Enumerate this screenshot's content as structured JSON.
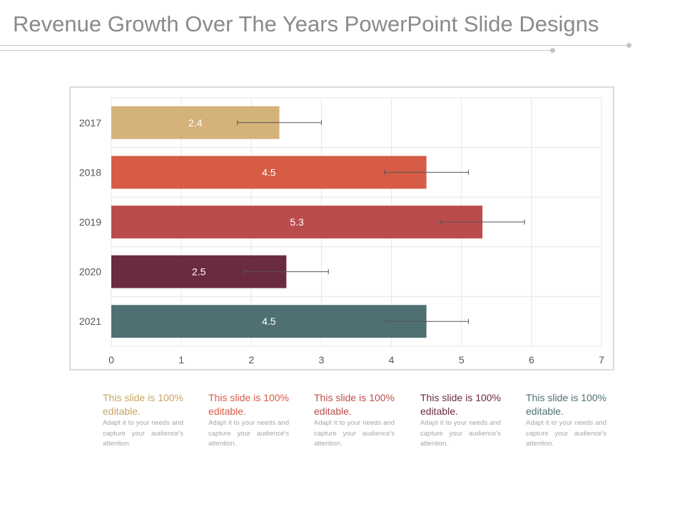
{
  "slide": {
    "title": "Revenue Growth Over The Years PowerPoint Slide Designs"
  },
  "colors": {
    "title": "#8a8a8a",
    "grid": "#e6e6e6",
    "axis_text": "#555555",
    "bar_label": "#ffffff",
    "error_bar": "#555555"
  },
  "chart_data": {
    "type": "bar",
    "orientation": "horizontal",
    "categories": [
      "2017",
      "2018",
      "2019",
      "2020",
      "2021"
    ],
    "values": [
      2.4,
      4.5,
      5.3,
      2.5,
      4.5
    ],
    "data_labels": [
      "2.4",
      "4.5",
      "5.3",
      "2.5",
      "4.5"
    ],
    "bar_colors": [
      "#d4b27a",
      "#d65c45",
      "#bc4c4c",
      "#6a2b40",
      "#4f7073"
    ],
    "error_bars": [
      {
        "low": 1.8,
        "high": 3.0
      },
      {
        "low": 3.9,
        "high": 5.1
      },
      {
        "low": 4.7,
        "high": 5.9
      },
      {
        "low": 1.9,
        "high": 3.1
      },
      {
        "low": 3.9,
        "high": 5.1
      }
    ],
    "xlim": [
      0,
      7
    ],
    "x_ticks": [
      "0",
      "1",
      "2",
      "3",
      "4",
      "5",
      "6",
      "7"
    ],
    "grid": true,
    "title": "",
    "xlabel": "",
    "ylabel": ""
  },
  "captions": [
    {
      "heading": "This slide is 100% editable.",
      "body": "Adapt it to your needs and capture your audience's attention.",
      "color": "#c9a463"
    },
    {
      "heading": "This slide is 100% editable.",
      "body": "Adapt it to your needs and capture your audience's attention.",
      "color": "#d65c45"
    },
    {
      "heading": "This slide is 100% editable.",
      "body": "Adapt it to your needs and capture your audience's attention.",
      "color": "#bc4c4c"
    },
    {
      "heading": "This slide is 100% editable.",
      "body": "Adapt it to your needs and capture your audience's attention.",
      "color": "#6a2b40"
    },
    {
      "heading": "This slide is 100% editable.",
      "body": "Adapt it to your needs and capture your audience's attention.",
      "color": "#4f7073"
    }
  ]
}
